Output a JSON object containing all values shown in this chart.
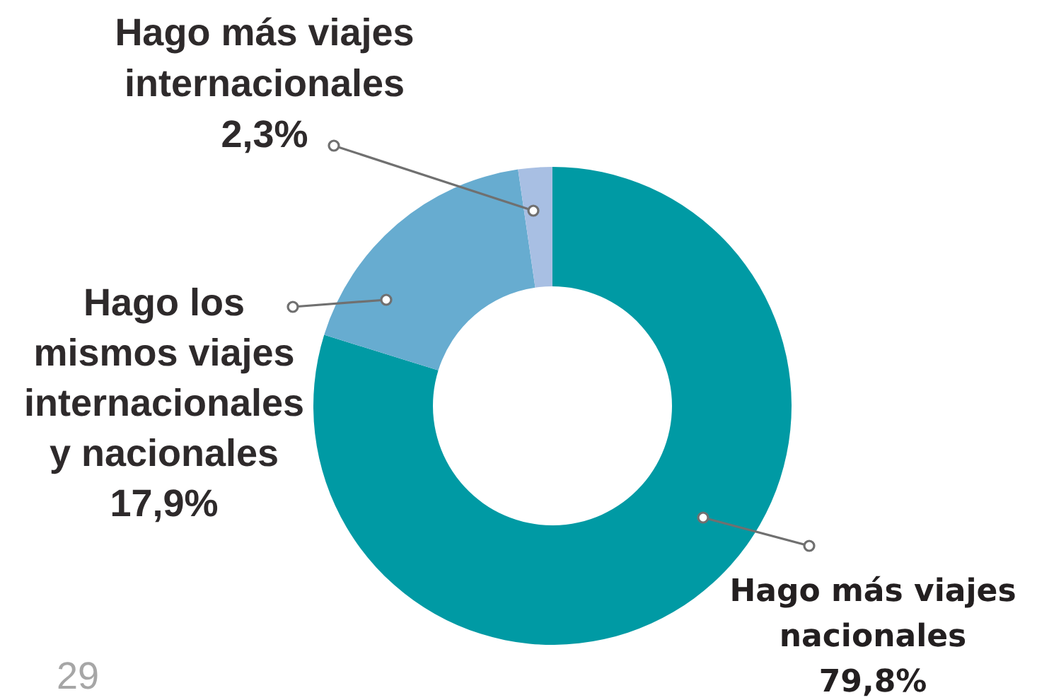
{
  "chart_data": {
    "type": "donut",
    "categories": [
      "Hago más viajes nacionales",
      "Hago los mismos viajes internacionales y nacionales",
      "Hago más viajes internacionales"
    ],
    "values": [
      79.8,
      17.9,
      2.3
    ],
    "colors": [
      "#009aa4",
      "#67acd0",
      "#a8bfe3"
    ],
    "value_labels": [
      "79,8%",
      "17,9%",
      "2,3%"
    ],
    "annotations": [
      "29"
    ]
  }
}
